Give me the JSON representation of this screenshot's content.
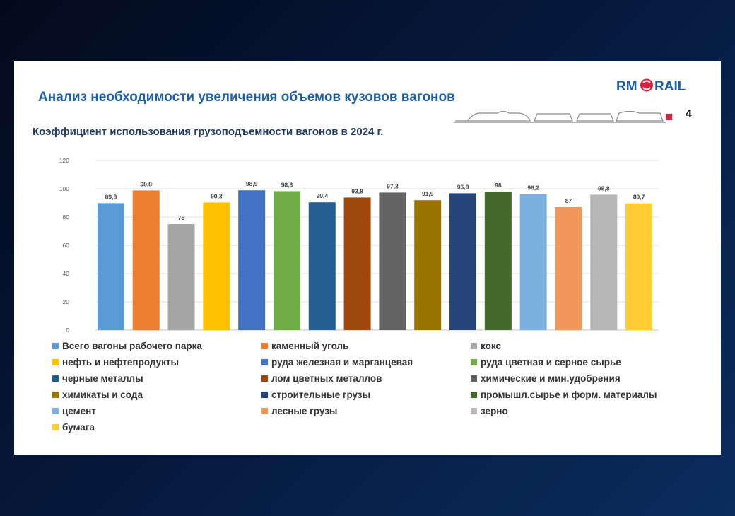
{
  "slide": {
    "title": "Анализ необходимости увеличения объемов кузовов вагонов",
    "page_number": "4",
    "logo": {
      "left": "RM",
      "right": "RAIL",
      "color_text": "#1d5ea8",
      "color_mark": "#d8213c"
    }
  },
  "chart_data": {
    "type": "bar",
    "title": "Коэффициент использования грузоподъемности вагонов в 2024 г.",
    "xlabel": "",
    "ylabel": "",
    "ylim": [
      0,
      120
    ],
    "yticks": [
      0,
      20,
      40,
      60,
      80,
      100,
      120
    ],
    "grid": true,
    "legend_position": "bottom",
    "series": [
      {
        "name": "Всего вагоны рабочего парка",
        "value": 89.8,
        "label": "89,8",
        "color": "#5b9bd5"
      },
      {
        "name": "каменный уголь",
        "value": 98.8,
        "label": "98,8",
        "color": "#ed7d31"
      },
      {
        "name": "кокс",
        "value": 75,
        "label": "75",
        "color": "#a5a5a5"
      },
      {
        "name": "нефть и нефтепродукты",
        "value": 90.3,
        "label": "90,3",
        "color": "#ffc000"
      },
      {
        "name": "руда железная и марганцевая",
        "value": 98.9,
        "label": "98,9",
        "color": "#4472c4"
      },
      {
        "name": "руда цветная и серное сырье",
        "value": 98.3,
        "label": "98,3",
        "color": "#70ad47"
      },
      {
        "name": "черные металлы",
        "value": 90.4,
        "label": "90,4",
        "color": "#255e91"
      },
      {
        "name": "лом цветных металлов",
        "value": 93.8,
        "label": "93,8",
        "color": "#9e480e"
      },
      {
        "name": "химические и мин.удобрения",
        "value": 97.3,
        "label": "97,3",
        "color": "#636363"
      },
      {
        "name": "химикаты и сода",
        "value": 91.9,
        "label": "91,9",
        "color": "#997300"
      },
      {
        "name": "строительные грузы",
        "value": 96.8,
        "label": "96,8",
        "color": "#264478"
      },
      {
        "name": "промышл.сырье и форм. материалы",
        "value": 98,
        "label": "98",
        "color": "#43682b"
      },
      {
        "name": "цемент",
        "value": 96.2,
        "label": "96,2",
        "color": "#7cafdd"
      },
      {
        "name": "лесные грузы",
        "value": 87,
        "label": "87",
        "color": "#f1975a"
      },
      {
        "name": "зерно",
        "value": 95.8,
        "label": "95,8",
        "color": "#b7b7b7"
      },
      {
        "name": "бумага",
        "value": 89.7,
        "label": "89,7",
        "color": "#ffcd33"
      }
    ]
  }
}
